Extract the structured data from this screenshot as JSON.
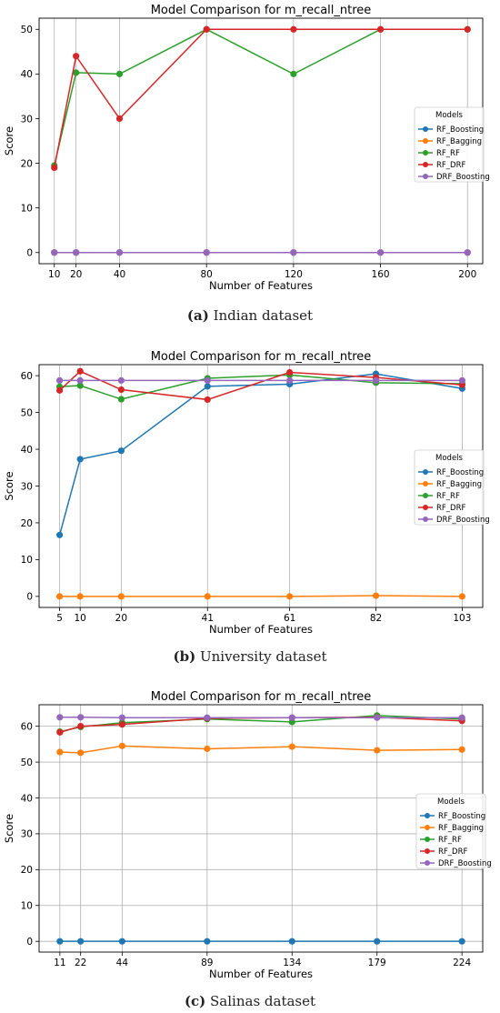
{
  "chart_data": [
    {
      "type": "line",
      "title": "Model Comparison for m_recall_ntree",
      "xlabel": "Number of Features",
      "ylabel": "Score",
      "caption_letter": "(a)",
      "caption_text": " Indian dataset",
      "x": [
        10,
        20,
        40,
        80,
        120,
        160,
        200
      ],
      "xlim": [
        3,
        207
      ],
      "ylim": [
        -2.5,
        52.5
      ],
      "yticks": [
        0,
        10,
        20,
        30,
        40,
        50
      ],
      "grid": "x",
      "legend_title": "Models",
      "legend_position": "right",
      "series": [
        {
          "name": "RF_Boosting",
          "color": "#1f77b4",
          "values": [
            0,
            0,
            0,
            0,
            0,
            0,
            0
          ]
        },
        {
          "name": "RF_Bagging",
          "color": "#ff7f0e",
          "values": [
            0,
            0,
            0,
            0,
            0,
            0,
            0
          ]
        },
        {
          "name": "RF_RF",
          "color": "#2ca02c",
          "values": [
            19.5,
            40.3,
            40,
            50,
            40,
            50,
            50
          ]
        },
        {
          "name": "RF_DRF",
          "color": "#d62728",
          "values": [
            19,
            44,
            30,
            50,
            50,
            50,
            50
          ]
        },
        {
          "name": "DRF_Boosting",
          "color": "#9467bd",
          "values": [
            0,
            0,
            0,
            0,
            0,
            0,
            0
          ]
        }
      ]
    },
    {
      "type": "line",
      "title": "Model Comparison for m_recall_ntree",
      "xlabel": "Number of Features",
      "ylabel": "Score",
      "caption_letter": "(b)",
      "caption_text": " University dataset",
      "x": [
        5,
        10,
        20,
        41,
        61,
        82,
        103
      ],
      "xlim": [
        0,
        108
      ],
      "ylim": [
        -3,
        63
      ],
      "yticks": [
        0,
        10,
        20,
        30,
        40,
        50,
        60
      ],
      "grid": "x",
      "legend_title": "Models",
      "legend_position": "right",
      "series": [
        {
          "name": "RF_Boosting",
          "color": "#1f77b4",
          "values": [
            16.7,
            37.3,
            39.6,
            57.1,
            57.7,
            60.5,
            56.5
          ]
        },
        {
          "name": "RF_Bagging",
          "color": "#ff7f0e",
          "values": [
            0,
            0,
            0,
            0,
            0,
            0.2,
            0
          ]
        },
        {
          "name": "RF_RF",
          "color": "#2ca02c",
          "values": [
            57,
            57.3,
            53.6,
            59.3,
            60.2,
            58.1,
            57.8
          ]
        },
        {
          "name": "RF_DRF",
          "color": "#d62728",
          "values": [
            56,
            61.2,
            56.2,
            53.5,
            60.9,
            59.5,
            57.5
          ]
        },
        {
          "name": "DRF_Boosting",
          "color": "#9467bd",
          "values": [
            58.7,
            58.7,
            58.7,
            58.7,
            58.7,
            58.7,
            58.7
          ]
        }
      ]
    },
    {
      "type": "line",
      "title": "Model Comparison for m_recall_ntree",
      "xlabel": "Number of Features",
      "ylabel": "Score",
      "caption_letter": "(c)",
      "caption_text": " Salinas dataset",
      "x": [
        11,
        22,
        44,
        89,
        134,
        179,
        224
      ],
      "xlim": [
        0,
        235
      ],
      "ylim": [
        -3,
        66
      ],
      "yticks": [
        0,
        10,
        20,
        30,
        40,
        50,
        60
      ],
      "grid": "both",
      "legend_title": "Models",
      "legend_position": "right",
      "series": [
        {
          "name": "RF_Boosting",
          "color": "#1f77b4",
          "values": [
            0,
            0,
            0,
            0,
            0,
            0,
            0
          ]
        },
        {
          "name": "RF_Bagging",
          "color": "#ff7f0e",
          "values": [
            52.8,
            52.6,
            54.5,
            53.7,
            54.3,
            53.3,
            53.5
          ]
        },
        {
          "name": "RF_RF",
          "color": "#2ca02c",
          "values": [
            58.5,
            59.8,
            61,
            62,
            61.2,
            63,
            62
          ]
        },
        {
          "name": "RF_DRF",
          "color": "#d62728",
          "values": [
            58.3,
            60,
            60.5,
            62.2,
            62.4,
            62.5,
            61.5
          ]
        },
        {
          "name": "DRF_Boosting",
          "color": "#9467bd",
          "values": [
            62.5,
            62.5,
            62.4,
            62.4,
            62.4,
            62.4,
            62.4
          ]
        }
      ]
    }
  ]
}
